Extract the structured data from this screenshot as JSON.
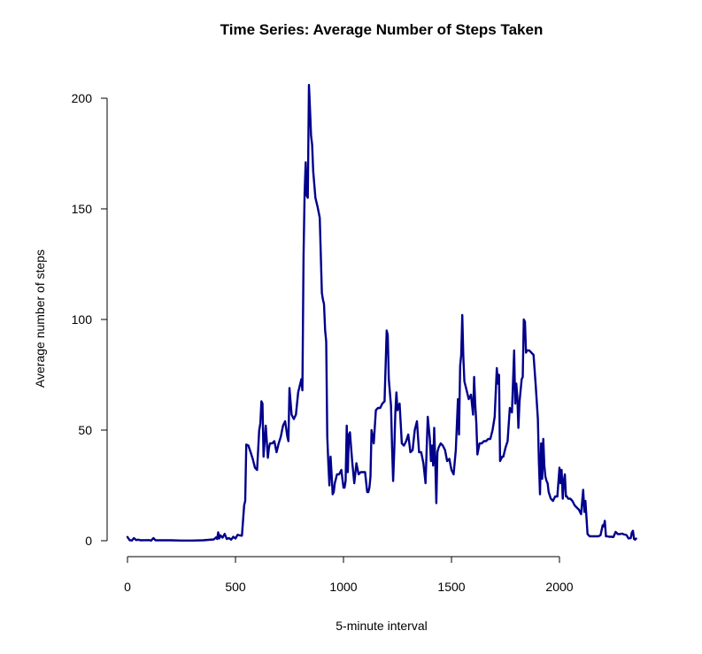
{
  "chart_data": {
    "type": "line",
    "title": "Time Series: Average Number of Steps Taken",
    "xlabel": "5-minute interval",
    "ylabel": "Average number of steps",
    "xlim": [
      0,
      2355
    ],
    "ylim": [
      0,
      206
    ],
    "x_ticks": [
      0,
      500,
      1000,
      1500,
      2000
    ],
    "y_ticks": [
      0,
      50,
      100,
      150,
      200
    ],
    "grid": false,
    "colors": {
      "line": "#00008B"
    },
    "series": [
      {
        "x": [
          0,
          10,
          20,
          30,
          40,
          50,
          60,
          100,
          110,
          120,
          130,
          150,
          200,
          250,
          300,
          350,
          400,
          410,
          415,
          420,
          425,
          430,
          440,
          450,
          460,
          470,
          480,
          490,
          500,
          510,
          520,
          530,
          540,
          545,
          550,
          560,
          570,
          580,
          590,
          600,
          610,
          615,
          620,
          625,
          630,
          640,
          650,
          655,
          660,
          670,
          680,
          690,
          700,
          710,
          720,
          730,
          740,
          745,
          750,
          760,
          770,
          780,
          790,
          800,
          805,
          810,
          815,
          820,
          825,
          830,
          835,
          840,
          845,
          850,
          855,
          860,
          870,
          880,
          890,
          900,
          905,
          910,
          915,
          920,
          925,
          930,
          935,
          940,
          945,
          950,
          955,
          960,
          970,
          980,
          990,
          1000,
          1005,
          1010,
          1015,
          1020,
          1025,
          1030,
          1040,
          1050,
          1060,
          1070,
          1080,
          1090,
          1100,
          1110,
          1115,
          1120,
          1125,
          1130,
          1140,
          1150,
          1160,
          1170,
          1180,
          1190,
          1200,
          1205,
          1210,
          1220,
          1225,
          1230,
          1235,
          1240,
          1245,
          1250,
          1260,
          1270,
          1280,
          1290,
          1300,
          1310,
          1320,
          1330,
          1340,
          1350,
          1360,
          1370,
          1380,
          1390,
          1400,
          1405,
          1410,
          1415,
          1420,
          1425,
          1430,
          1435,
          1440,
          1450,
          1460,
          1470,
          1480,
          1490,
          1500,
          1510,
          1520,
          1530,
          1535,
          1540,
          1545,
          1550,
          1555,
          1560,
          1570,
          1580,
          1590,
          1600,
          1605,
          1610,
          1615,
          1620,
          1630,
          1640,
          1650,
          1660,
          1670,
          1680,
          1690,
          1700,
          1710,
          1715,
          1720,
          1725,
          1730,
          1735,
          1740,
          1745,
          1750,
          1760,
          1770,
          1780,
          1790,
          1795,
          1800,
          1805,
          1810,
          1815,
          1820,
          1825,
          1830,
          1835,
          1840,
          1845,
          1850,
          1860,
          1870,
          1880,
          1890,
          1900,
          1905,
          1910,
          1915,
          1920,
          1925,
          1930,
          1935,
          1940,
          1945,
          1950,
          1960,
          1970,
          1980,
          1990,
          2000,
          2005,
          2010,
          2015,
          2020,
          2025,
          2030,
          2035,
          2040,
          2050,
          2060,
          2070,
          2080,
          2090,
          2100,
          2110,
          2115,
          2120,
          2130,
          2140,
          2150,
          2160,
          2170,
          2180,
          2190,
          2200,
          2205,
          2210,
          2215,
          2220,
          2230,
          2240,
          2250,
          2260,
          2270,
          2280,
          2290,
          2300,
          2310,
          2320,
          2330,
          2335,
          2340,
          2345,
          2350,
          2355
        ],
        "y": [
          1.7,
          0.3,
          0.1,
          1.2,
          0.3,
          0.5,
          0.2,
          0.3,
          0.1,
          1.2,
          0.2,
          0.2,
          0.2,
          0.1,
          0.1,
          0.2,
          0.6,
          1.5,
          0.8,
          3.8,
          1.0,
          2.5,
          1.4,
          3.1,
          0.8,
          1.2,
          0.5,
          1.8,
          1.0,
          2.7,
          2.4,
          2.3,
          16.0,
          18.0,
          43.5,
          43.0,
          40.0,
          37.0,
          33.0,
          32.0,
          50.0,
          53.0,
          63.0,
          62.0,
          38.0,
          52.0,
          37.5,
          42.0,
          44.0,
          44.0,
          45.0,
          40.0,
          44.0,
          47.0,
          52.0,
          54.0,
          47.0,
          45.0,
          69.0,
          57.0,
          55.0,
          57.0,
          67.0,
          71.0,
          73.0,
          68.0,
          129.0,
          157.0,
          171.0,
          156.0,
          155.0,
          206.0,
          195.0,
          183.0,
          179.0,
          167.0,
          155.0,
          151.0,
          146.0,
          112.0,
          109.0,
          107.0,
          95.0,
          90.0,
          47.0,
          35.0,
          25.0,
          38.0,
          30.0,
          21.0,
          22.0,
          26.0,
          30.0,
          30.0,
          32.0,
          24.0,
          24.0,
          27.0,
          52.0,
          31.0,
          48.0,
          49.0,
          36.0,
          26.0,
          35.0,
          30.0,
          31.0,
          31.0,
          31.0,
          22.0,
          22.0,
          24.0,
          29.0,
          50.0,
          44.0,
          59.0,
          60.0,
          60.0,
          62.0,
          63.0,
          95.0,
          93.0,
          73.0,
          61.0,
          42.0,
          27.0,
          40.0,
          58.0,
          67.0,
          59.0,
          62.0,
          44.0,
          43.0,
          45.0,
          48.0,
          40.0,
          41.0,
          50.0,
          54.0,
          40.0,
          40.0,
          35.0,
          26.0,
          56.0,
          46.0,
          36.0,
          43.0,
          34.0,
          51.0,
          36.0,
          17.0,
          40.0,
          42.0,
          44.0,
          43.0,
          41.0,
          36.0,
          37.0,
          32.0,
          30.0,
          41.0,
          64.0,
          48.0,
          79.0,
          84.0,
          102.0,
          83.0,
          72.0,
          68.0,
          64.0,
          66.0,
          57.0,
          74.0,
          62.0,
          53.0,
          39.0,
          44.0,
          44.0,
          45.0,
          45.0,
          46.0,
          46.0,
          50.0,
          56.0,
          78.0,
          71.0,
          75.0,
          36.0,
          37.0,
          38.0,
          38.0,
          40.0,
          42.0,
          45.0,
          60.0,
          58.0,
          86.0,
          62.0,
          71.0,
          65.0,
          51.0,
          63.0,
          68.0,
          73.0,
          74.0,
          100.0,
          99.0,
          85.0,
          86.0,
          86.0,
          85.0,
          84.0,
          70.0,
          55.0,
          35.0,
          21.0,
          44.0,
          28.0,
          46.0,
          34.0,
          29.0,
          27.0,
          26.0,
          22.0,
          19.0,
          18.0,
          20.0,
          20.0,
          33.0,
          26.0,
          32.0,
          19.0,
          27.0,
          30.0,
          20.0,
          20.0,
          19.0,
          19.0,
          18.0,
          16.0,
          15.0,
          14.0,
          12.0,
          23.0,
          13.0,
          18.0,
          3.0,
          2.0,
          2.0,
          2.0,
          2.0,
          2.0,
          2.5,
          7.0,
          6.5,
          9.0,
          2.0,
          2.0,
          1.8,
          1.8,
          1.7,
          4.0,
          3.0,
          3.0,
          3.2,
          2.8,
          2.6,
          1.0,
          1.2,
          3.7,
          4.5,
          0.8,
          0.5,
          1.0
        ]
      }
    ]
  }
}
